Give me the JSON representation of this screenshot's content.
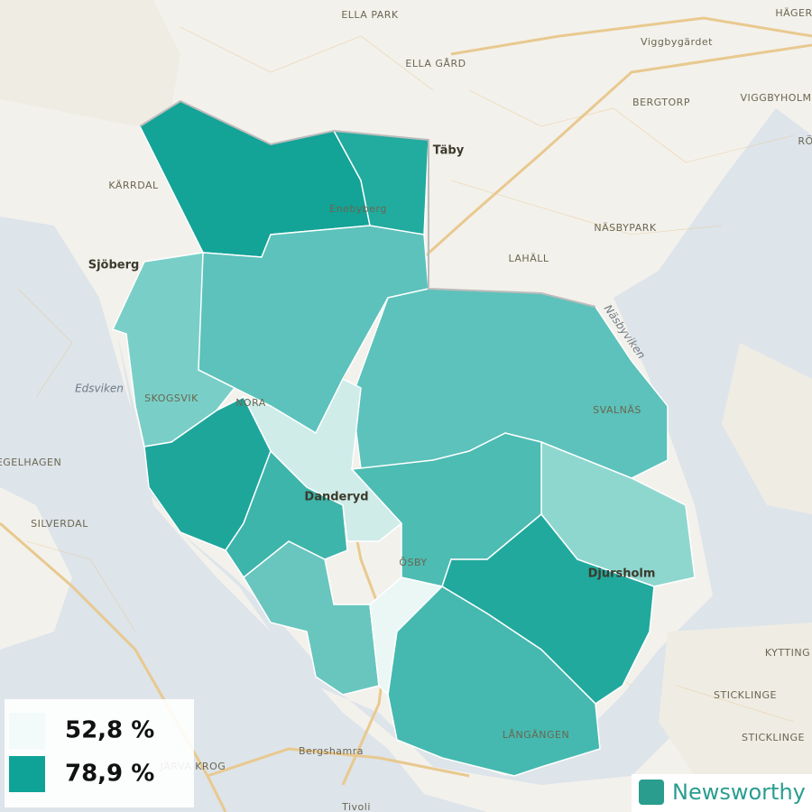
{
  "map": {
    "places": [
      "ELLA PARK",
      "HÄGER",
      "Viggbygärdet",
      "ELLA GÅRD",
      "BERGTORP",
      "VIGGBYHOLM",
      "RÖ",
      "Täby",
      "KÄRRDAL",
      "Enebyberg",
      "NÄSBYPARK",
      "Sjöberg",
      "LAHÄLL",
      "Näsbyviken",
      "Edsviken",
      "SKOGSVIK",
      "NORA",
      "SVALNÄS",
      "EGELHAGEN",
      "Danderyd",
      "SILVERDAL",
      "ÖSBY",
      "Djursholm",
      "KYTTING",
      "STICKLINGE",
      "STICKLINGE",
      "LÅNGÄNGEN",
      "Bergshamra",
      "JÄRVA KROG",
      "Tivoli"
    ],
    "legend": {
      "items": [
        {
          "value": 52.8,
          "label": "52,8 %",
          "color": "#f2fbfa"
        },
        {
          "value": 78.9,
          "label": "78,9 %",
          "color": "#0fa398"
        }
      ]
    },
    "brand": "Newsworthy"
  }
}
